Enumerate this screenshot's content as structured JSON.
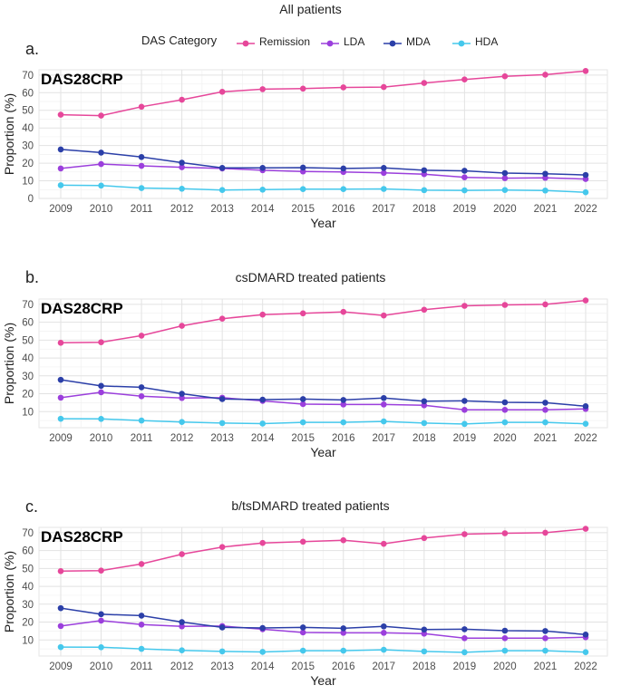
{
  "figure": {
    "main_title": "All patients",
    "legend_title": "DAS Category",
    "panel_labels": [
      "a.",
      "b.",
      "c."
    ],
    "panel_badge": "DAS28CRP"
  },
  "chart_data": [
    {
      "type": "line",
      "title": "All patients",
      "badge": "DAS28CRP",
      "xlabel": "Year",
      "ylabel": "Proportion (%)",
      "x": [
        "2009",
        "2010",
        "2011",
        "2012",
        "2013",
        "2014",
        "2015",
        "2016",
        "2017",
        "2018",
        "2019",
        "2020",
        "2021",
        "2022"
      ],
      "ylim": [
        0,
        73
      ],
      "yticks": [
        0,
        10,
        20,
        30,
        40,
        50,
        60,
        70
      ],
      "series": [
        {
          "name": "Remission",
          "color": "#e6479a",
          "values": [
            47.5,
            47,
            52,
            56,
            60.5,
            62,
            62.3,
            63,
            63.2,
            65.5,
            67.5,
            69.3,
            70.2,
            72.3
          ]
        },
        {
          "name": "LDA",
          "color": "#9b3fdc",
          "values": [
            17,
            19.5,
            18.5,
            17.7,
            17,
            16,
            15.3,
            15,
            14.5,
            13.8,
            12,
            11.5,
            11.7,
            11
          ]
        },
        {
          "name": "MDA",
          "color": "#2b3fa8",
          "values": [
            27.8,
            26,
            23.5,
            20.3,
            17.3,
            17.3,
            17.5,
            17,
            17.3,
            16,
            15.7,
            14.4,
            14,
            13.3
          ]
        },
        {
          "name": "HDA",
          "color": "#45c8ec",
          "values": [
            7.5,
            7.3,
            5.9,
            5.5,
            4.8,
            5,
            5.3,
            5.3,
            5.4,
            4.7,
            4.6,
            4.8,
            4.5,
            3.5
          ]
        }
      ]
    },
    {
      "type": "line",
      "title": "csDMARD treated patients",
      "badge": "DAS28CRP",
      "xlabel": "Year",
      "ylabel": "Proportion (%)",
      "x": [
        "2009",
        "2010",
        "2011",
        "2012",
        "2013",
        "2014",
        "2015",
        "2016",
        "2017",
        "2018",
        "2019",
        "2020",
        "2021",
        "2022"
      ],
      "ylim": [
        1,
        73
      ],
      "yticks": [
        10,
        20,
        30,
        40,
        50,
        60,
        70
      ],
      "series": [
        {
          "name": "Remission",
          "color": "#e6479a",
          "values": [
            48.5,
            48.8,
            52.5,
            58,
            62,
            64.3,
            65,
            65.8,
            63.8,
            67,
            69.2,
            69.7,
            70,
            72.2
          ]
        },
        {
          "name": "LDA",
          "color": "#9b3fdc",
          "values": [
            17.8,
            20.8,
            18.6,
            17.6,
            17.8,
            16,
            14.2,
            14,
            14,
            13.5,
            11,
            11,
            11,
            11.5
          ]
        },
        {
          "name": "MDA",
          "color": "#2b3fa8",
          "values": [
            27.8,
            24.4,
            23.6,
            20,
            17,
            16.7,
            17,
            16.5,
            17.6,
            15.8,
            16,
            15.2,
            15,
            13
          ]
        },
        {
          "name": "HDA",
          "color": "#45c8ec",
          "values": [
            6,
            5.9,
            5,
            4.2,
            3.6,
            3.3,
            4,
            4,
            4.5,
            3.6,
            3.1,
            4,
            4,
            3.2
          ]
        }
      ]
    },
    {
      "type": "line",
      "title": "b/tsDMARD treated patients",
      "badge": "DAS28CRP",
      "xlabel": "Year",
      "ylabel": "Proportion (%)",
      "x": [
        "2009",
        "2010",
        "2011",
        "2012",
        "2013",
        "2014",
        "2015",
        "2016",
        "2017",
        "2018",
        "2019",
        "2020",
        "2021",
        "2022"
      ],
      "ylim": [
        1,
        73
      ],
      "yticks": [
        10,
        20,
        30,
        40,
        50,
        60,
        70
      ],
      "series": [
        {
          "name": "Remission",
          "color": "#e6479a",
          "values": [
            48.5,
            48.8,
            52.5,
            58,
            62,
            64.3,
            65,
            65.8,
            63.8,
            67,
            69.2,
            69.7,
            70,
            72.2
          ]
        },
        {
          "name": "LDA",
          "color": "#9b3fdc",
          "values": [
            17.8,
            20.8,
            18.6,
            17.6,
            17.8,
            16,
            14.2,
            14,
            14,
            13.5,
            11,
            11,
            11,
            11.5
          ]
        },
        {
          "name": "MDA",
          "color": "#2b3fa8",
          "values": [
            27.8,
            24.4,
            23.6,
            20,
            17,
            16.7,
            17,
            16.5,
            17.6,
            15.8,
            16,
            15.2,
            15,
            13
          ]
        },
        {
          "name": "HDA",
          "color": "#45c8ec",
          "values": [
            6,
            5.9,
            5,
            4.2,
            3.6,
            3.3,
            4,
            4,
            4.5,
            3.6,
            3.1,
            4,
            4,
            3.2
          ]
        }
      ]
    }
  ]
}
